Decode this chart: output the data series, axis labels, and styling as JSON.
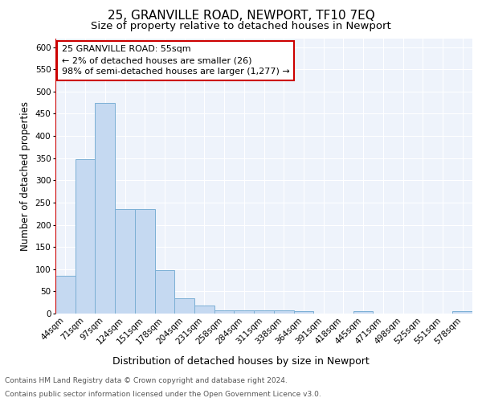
{
  "title1": "25, GRANVILLE ROAD, NEWPORT, TF10 7EQ",
  "title2": "Size of property relative to detached houses in Newport",
  "xlabel": "Distribution of detached houses by size in Newport",
  "ylabel": "Number of detached properties",
  "categories": [
    "44sqm",
    "71sqm",
    "97sqm",
    "124sqm",
    "151sqm",
    "178sqm",
    "204sqm",
    "231sqm",
    "258sqm",
    "284sqm",
    "311sqm",
    "338sqm",
    "364sqm",
    "391sqm",
    "418sqm",
    "445sqm",
    "471sqm",
    "498sqm",
    "525sqm",
    "551sqm",
    "578sqm"
  ],
  "values": [
    85,
    348,
    475,
    235,
    235,
    98,
    35,
    18,
    8,
    8,
    8,
    8,
    5,
    0,
    0,
    5,
    0,
    0,
    0,
    0,
    5
  ],
  "bar_color": "#c5d9f1",
  "bar_edge_color": "#7bafd4",
  "annotation_line1": "25 GRANVILLE ROAD: 55sqm",
  "annotation_line2": "← 2% of detached houses are smaller (26)",
  "annotation_line3": "98% of semi-detached houses are larger (1,277) →",
  "annotation_box_color": "#ffffff",
  "annotation_box_edge": "#cc0000",
  "red_line_color": "#cc0000",
  "red_line_x": -0.5,
  "ylim_max": 620,
  "yticks": [
    0,
    50,
    100,
    150,
    200,
    250,
    300,
    350,
    400,
    450,
    500,
    550,
    600
  ],
  "footer1": "Contains HM Land Registry data © Crown copyright and database right 2024.",
  "footer2": "Contains public sector information licensed under the Open Government Licence v3.0.",
  "bg_color": "#eef3fb",
  "grid_color": "#ffffff",
  "title1_fontsize": 11,
  "title2_fontsize": 9.5,
  "xlabel_fontsize": 9,
  "ylabel_fontsize": 8.5,
  "tick_fontsize": 7.5,
  "ann_fontsize": 8,
  "footer_fontsize": 6.5
}
